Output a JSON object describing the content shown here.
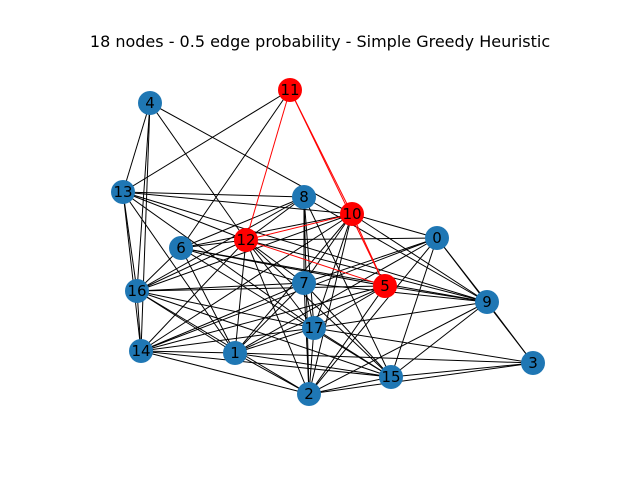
{
  "title": "18 nodes - 0.5 edge probability - Simple Greedy Heuristic",
  "colors": {
    "default_node": "#1f77b4",
    "highlight_node": "#ff0000",
    "default_edge": "#000000",
    "highlight_edge": "#ff0000"
  },
  "graph": {
    "nodes": [
      {
        "id": "0",
        "highlighted": false
      },
      {
        "id": "1",
        "highlighted": false
      },
      {
        "id": "2",
        "highlighted": false
      },
      {
        "id": "3",
        "highlighted": false
      },
      {
        "id": "4",
        "highlighted": false
      },
      {
        "id": "5",
        "highlighted": true
      },
      {
        "id": "6",
        "highlighted": false
      },
      {
        "id": "7",
        "highlighted": false
      },
      {
        "id": "8",
        "highlighted": false
      },
      {
        "id": "9",
        "highlighted": false
      },
      {
        "id": "10",
        "highlighted": true
      },
      {
        "id": "11",
        "highlighted": true
      },
      {
        "id": "12",
        "highlighted": true
      },
      {
        "id": "13",
        "highlighted": false
      },
      {
        "id": "14",
        "highlighted": false
      },
      {
        "id": "15",
        "highlighted": false
      },
      {
        "id": "16",
        "highlighted": false
      },
      {
        "id": "17",
        "highlighted": false
      }
    ],
    "edges": [
      [
        "11",
        "12"
      ],
      [
        "11",
        "10"
      ],
      [
        "11",
        "5"
      ],
      [
        "12",
        "10"
      ],
      [
        "12",
        "5"
      ],
      [
        "10",
        "5"
      ],
      [
        "4",
        "13"
      ],
      [
        "4",
        "16"
      ],
      [
        "4",
        "14"
      ],
      [
        "4",
        "12"
      ],
      [
        "4",
        "10"
      ],
      [
        "13",
        "11"
      ],
      [
        "13",
        "8"
      ],
      [
        "13",
        "10"
      ],
      [
        "13",
        "12"
      ],
      [
        "13",
        "16"
      ],
      [
        "13",
        "14"
      ],
      [
        "13",
        "1"
      ],
      [
        "13",
        "17"
      ],
      [
        "13",
        "9"
      ],
      [
        "8",
        "6"
      ],
      [
        "8",
        "12"
      ],
      [
        "8",
        "7"
      ],
      [
        "8",
        "17"
      ],
      [
        "8",
        "2"
      ],
      [
        "8",
        "9"
      ],
      [
        "8",
        "15"
      ],
      [
        "8",
        "16"
      ],
      [
        "10",
        "0"
      ],
      [
        "10",
        "6"
      ],
      [
        "10",
        "7"
      ],
      [
        "10",
        "17"
      ],
      [
        "10",
        "16"
      ],
      [
        "10",
        "14"
      ],
      [
        "10",
        "1"
      ],
      [
        "10",
        "2"
      ],
      [
        "10",
        "9"
      ],
      [
        "0",
        "12"
      ],
      [
        "0",
        "7"
      ],
      [
        "0",
        "1"
      ],
      [
        "0",
        "15"
      ],
      [
        "0",
        "2"
      ],
      [
        "0",
        "3"
      ],
      [
        "0",
        "9"
      ],
      [
        "0",
        "14"
      ],
      [
        "12",
        "6"
      ],
      [
        "12",
        "16"
      ],
      [
        "12",
        "14"
      ],
      [
        "12",
        "7"
      ],
      [
        "12",
        "17"
      ],
      [
        "12",
        "15"
      ],
      [
        "12",
        "2"
      ],
      [
        "12",
        "1"
      ],
      [
        "12",
        "9"
      ],
      [
        "6",
        "16"
      ],
      [
        "6",
        "7"
      ],
      [
        "6",
        "1"
      ],
      [
        "6",
        "15"
      ],
      [
        "6",
        "9"
      ],
      [
        "6",
        "11"
      ],
      [
        "16",
        "7"
      ],
      [
        "16",
        "14"
      ],
      [
        "16",
        "1"
      ],
      [
        "16",
        "17"
      ],
      [
        "16",
        "2"
      ],
      [
        "16",
        "15"
      ],
      [
        "7",
        "9"
      ],
      [
        "7",
        "17"
      ],
      [
        "7",
        "1"
      ],
      [
        "7",
        "2"
      ],
      [
        "7",
        "15"
      ],
      [
        "7",
        "14"
      ],
      [
        "5",
        "9"
      ],
      [
        "5",
        "17"
      ],
      [
        "5",
        "2"
      ],
      [
        "5",
        "1"
      ],
      [
        "5",
        "14"
      ],
      [
        "5",
        "16"
      ],
      [
        "5",
        "6"
      ],
      [
        "9",
        "17"
      ],
      [
        "9",
        "3"
      ],
      [
        "9",
        "15"
      ],
      [
        "9",
        "2"
      ],
      [
        "17",
        "14"
      ],
      [
        "17",
        "1"
      ],
      [
        "17",
        "2"
      ],
      [
        "17",
        "15"
      ],
      [
        "17",
        "3"
      ],
      [
        "14",
        "1"
      ],
      [
        "14",
        "2"
      ],
      [
        "14",
        "15"
      ],
      [
        "1",
        "2"
      ],
      [
        "1",
        "15"
      ],
      [
        "1",
        "3"
      ],
      [
        "2",
        "15"
      ],
      [
        "2",
        "3"
      ],
      [
        "15",
        "3"
      ]
    ]
  }
}
